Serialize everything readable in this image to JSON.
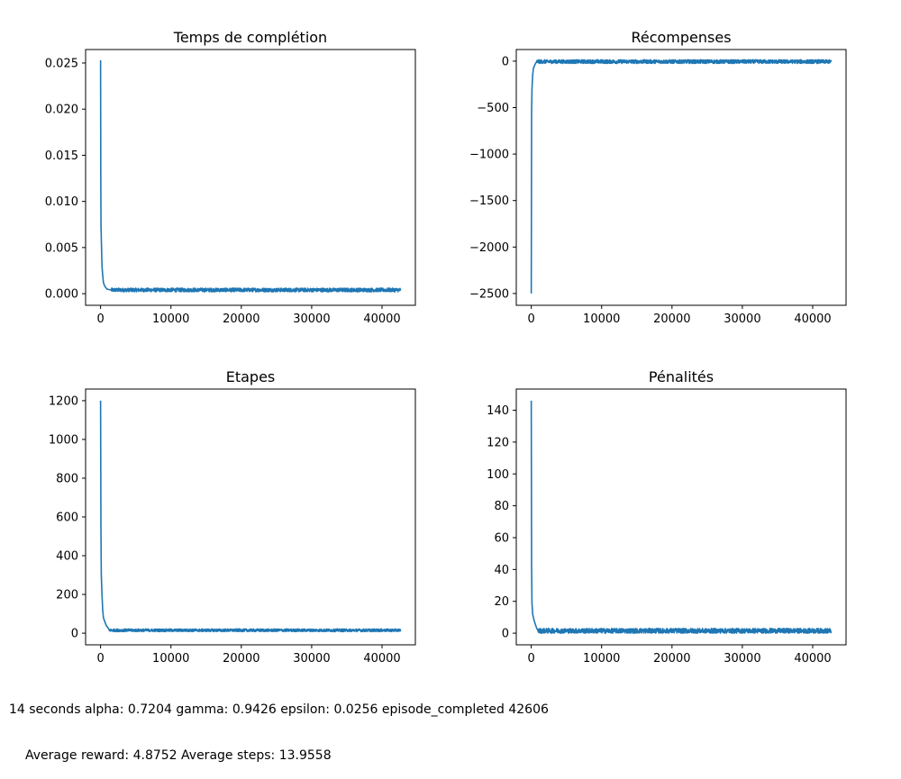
{
  "chart_data": [
    {
      "type": "line",
      "title": "Temps de complétion",
      "xlim": [
        -2130,
        44736
      ],
      "ylim": [
        -0.00126,
        0.02646
      ],
      "xticks": [
        0,
        10000,
        20000,
        30000,
        40000
      ],
      "xtick_labels": [
        "0",
        "10000",
        "20000",
        "30000",
        "40000"
      ],
      "yticks": [
        0.0,
        0.005,
        0.01,
        0.015,
        0.02,
        0.025
      ],
      "ytick_labels": [
        "0.000",
        "0.005",
        "0.010",
        "0.015",
        "0.020",
        "0.025"
      ],
      "color": "#1f77b4",
      "series": [
        {
          "x": [
            0,
            30,
            60,
            100,
            150,
            200,
            300,
            400,
            600,
            900,
            1500,
            42606
          ],
          "y": [
            0.0253,
            0.012,
            0.0075,
            0.006,
            0.0045,
            0.003,
            0.002,
            0.0012,
            0.0008,
            0.0005,
            0.0004,
            0.0004
          ],
          "noise_band": [
            0.0002,
            0.0006
          ]
        }
      ]
    },
    {
      "type": "line",
      "title": "Récompenses",
      "xlim": [
        -2130,
        44736
      ],
      "ylim": [
        -2627,
        125
      ],
      "xticks": [
        0,
        10000,
        20000,
        30000,
        40000
      ],
      "xtick_labels": [
        "0",
        "10000",
        "20000",
        "30000",
        "40000"
      ],
      "yticks": [
        0,
        -500,
        -1000,
        -1500,
        -2000,
        -2500
      ],
      "ytick_labels": [
        "0",
        "−500",
        "−1000",
        "−1500",
        "−2000",
        "−2500"
      ],
      "color": "#1f77b4",
      "series": [
        {
          "x": [
            0,
            50,
            100,
            200,
            300,
            500,
            800,
            42606
          ],
          "y": [
            -2500,
            -550,
            -300,
            -150,
            -80,
            -40,
            0,
            0
          ],
          "noise_band": [
            -25,
            15
          ]
        }
      ]
    },
    {
      "type": "line",
      "title": "Etapes",
      "xlim": [
        -2130,
        44736
      ],
      "ylim": [
        -60,
        1260
      ],
      "xticks": [
        0,
        10000,
        20000,
        30000,
        40000
      ],
      "xtick_labels": [
        "0",
        "10000",
        "20000",
        "30000",
        "40000"
      ],
      "yticks": [
        0,
        200,
        400,
        600,
        800,
        1000,
        1200
      ],
      "ytick_labels": [
        "0",
        "200",
        "400",
        "600",
        "800",
        "1000",
        "1200"
      ],
      "color": "#1f77b4",
      "series": [
        {
          "x": [
            0,
            50,
            100,
            200,
            300,
            400,
            600,
            800,
            1200,
            42606
          ],
          "y": [
            1200,
            550,
            300,
            200,
            120,
            80,
            60,
            40,
            20,
            14
          ],
          "noise_band": [
            8,
            22
          ]
        }
      ]
    },
    {
      "type": "line",
      "title": "Pénalités",
      "xlim": [
        -2130,
        44736
      ],
      "ylim": [
        -7.3,
        153.3
      ],
      "xticks": [
        0,
        10000,
        20000,
        30000,
        40000
      ],
      "xtick_labels": [
        "0",
        "10000",
        "20000",
        "30000",
        "40000"
      ],
      "yticks": [
        0,
        20,
        40,
        60,
        80,
        100,
        120,
        140
      ],
      "ytick_labels": [
        "0",
        "20",
        "40",
        "60",
        "80",
        "100",
        "120",
        "140"
      ],
      "color": "#1f77b4",
      "series": [
        {
          "x": [
            0,
            50,
            100,
            200,
            400,
            700,
            1000,
            42606
          ],
          "y": [
            146,
            40,
            19,
            12,
            8,
            4,
            1,
            0.5
          ],
          "noise_band": [
            0,
            3
          ]
        }
      ]
    }
  ],
  "footer": {
    "line1": "14 seconds alpha: 0.7204 gamma: 0.9426 epsilon: 0.0256 episode_completed 42606",
    "line2": "Average reward: 4.8752 Average steps: 13.9558"
  }
}
